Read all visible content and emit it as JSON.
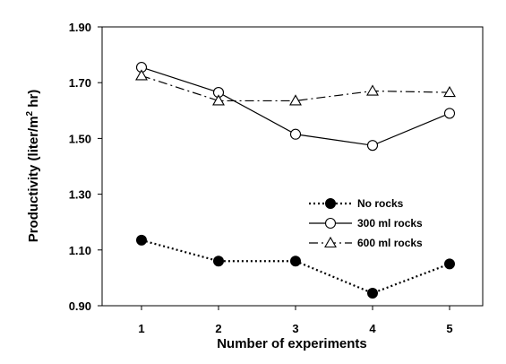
{
  "chart_data": {
    "type": "line",
    "xlabel": "Number of experiments",
    "ylabel": "Productivity (liter/m",
    "ylabel_sup": "2",
    "ylabel_tail": " hr)",
    "ylim": [
      0.9,
      1.9
    ],
    "yticks": [
      "0.90",
      "1.10",
      "1.30",
      "1.50",
      "1.70",
      "1.90"
    ],
    "ytick_values": [
      0.9,
      1.1,
      1.3,
      1.5,
      1.7,
      1.9
    ],
    "x": [
      1,
      2,
      3,
      4,
      5
    ],
    "xticks": [
      "1",
      "2",
      "3",
      "4",
      "5"
    ],
    "grid": false,
    "legend_position": "right-center",
    "series": [
      {
        "name": "No rocks",
        "values": [
          1.135,
          1.06,
          1.06,
          0.945,
          1.05
        ],
        "marker": "filled-circle",
        "line": "dotted"
      },
      {
        "name": "300 ml rocks",
        "values": [
          1.755,
          1.665,
          1.515,
          1.475,
          1.59
        ],
        "marker": "open-circle",
        "line": "solid"
      },
      {
        "name": "600 ml rocks",
        "values": [
          1.725,
          1.635,
          1.635,
          1.67,
          1.665
        ],
        "marker": "open-triangle",
        "line": "dash-dot"
      }
    ]
  }
}
